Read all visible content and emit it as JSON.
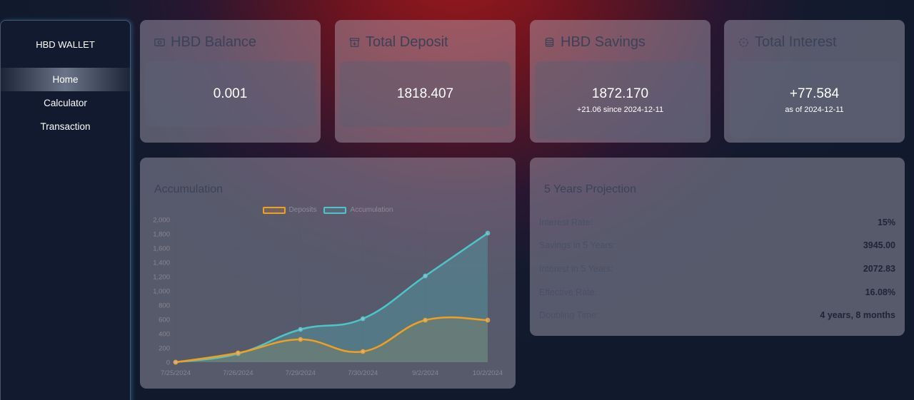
{
  "sidebar": {
    "brand": "HBD WALLET",
    "items": [
      {
        "label": "Home",
        "active": true
      },
      {
        "label": "Calculator",
        "active": false
      },
      {
        "label": "Transaction",
        "active": false
      }
    ]
  },
  "stats": {
    "balance": {
      "title": "HBD Balance",
      "value": "0.001",
      "icon": "money-icon"
    },
    "deposit": {
      "title": "Total Deposit",
      "value": "1818.407",
      "icon": "archive-download-icon"
    },
    "savings": {
      "title": "HBD Savings",
      "value": "1872.170",
      "sub": "+21.06 since 2024-12-11",
      "icon": "database-icon"
    },
    "interest": {
      "title": "Total Interest",
      "value": "+77.584",
      "sub": "as of 2024-12-11",
      "icon": "dashed-circle-icon"
    }
  },
  "accumulation": {
    "title": "Accumulation",
    "chart_data": {
      "type": "line",
      "x": [
        "7/25/2024",
        "7/26/2024",
        "7/29/2024",
        "7/30/2024",
        "9/2/2024",
        "10/2/2024"
      ],
      "series": [
        {
          "name": "Deposits",
          "values": [
            0,
            130,
            320,
            150,
            590,
            590
          ],
          "color": "#f0a020"
        },
        {
          "name": "Accumulation",
          "values": [
            0,
            120,
            460,
            610,
            1210,
            1810
          ],
          "color": "#4ec4c8"
        }
      ],
      "ylim": [
        0,
        2000
      ],
      "yticks": [
        "0",
        "200",
        "400",
        "600",
        "800",
        "1,000",
        "1,200",
        "1,400",
        "1,600",
        "1,800",
        "2,000"
      ],
      "grid": true,
      "legend": "top-center"
    }
  },
  "projection": {
    "title": "5 Years Projection",
    "rows": [
      {
        "label": "Interest Rate:",
        "value": "15%"
      },
      {
        "label": "Savings in 5 Years:",
        "value": "3945.00"
      },
      {
        "label": "Interest in 5 Years:",
        "value": "2072.83"
      },
      {
        "label": "Effective Rate:",
        "value": "16.08%"
      },
      {
        "label": "Doubling Time:",
        "value": "4 years, 8 months"
      }
    ]
  }
}
